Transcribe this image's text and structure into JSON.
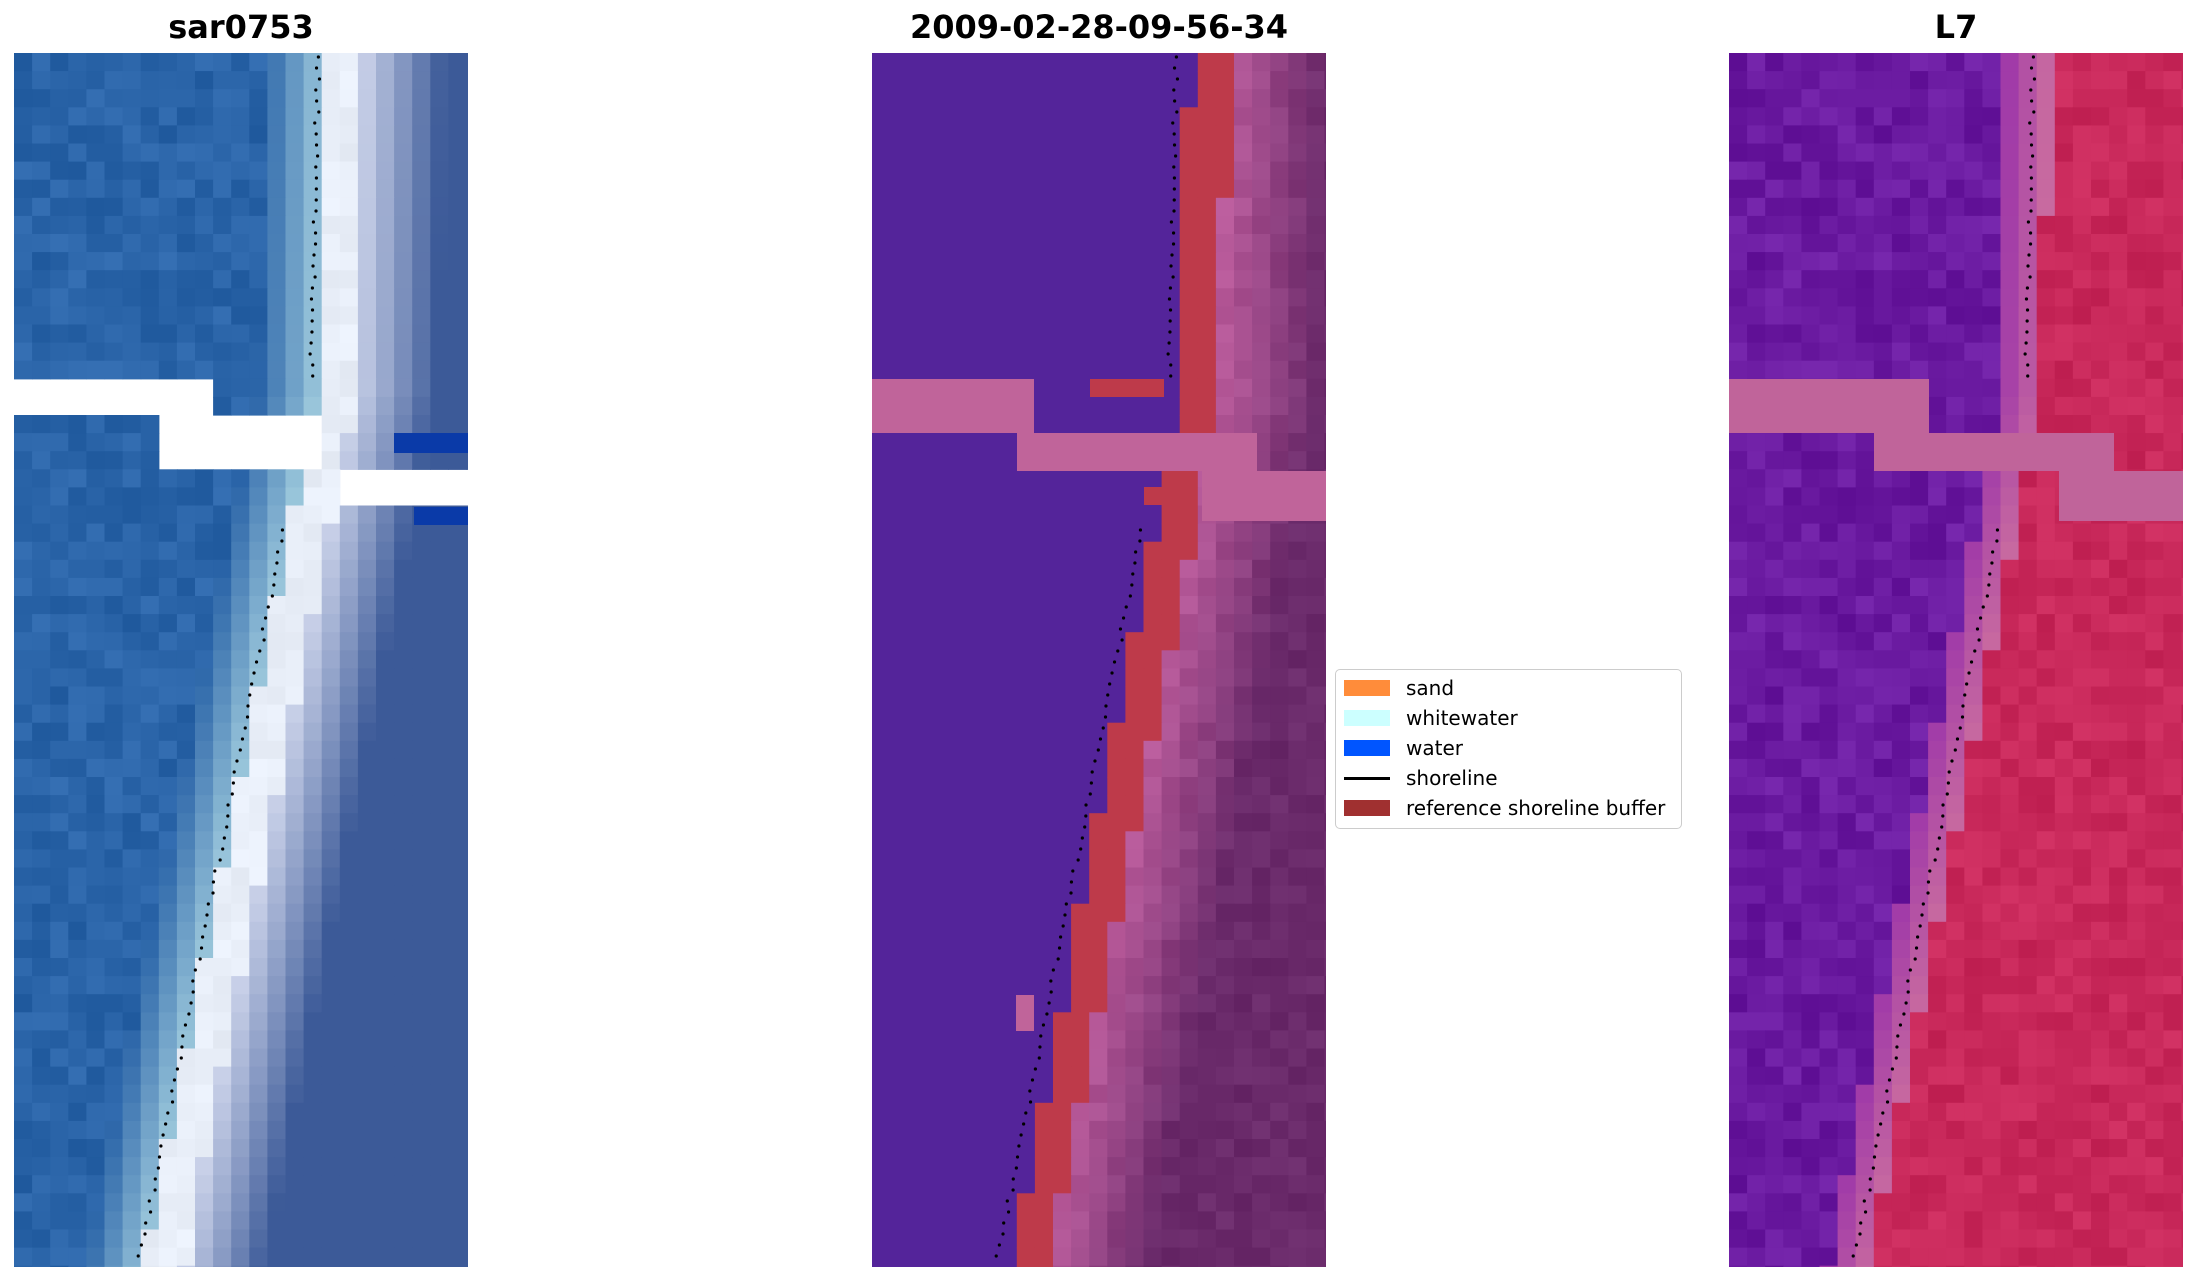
{
  "panels": {
    "left_title": "sar0753",
    "middle_title": "2009-02-28-09-56-34",
    "right_title": "L7"
  },
  "legend": {
    "items": [
      {
        "label": "sand",
        "color": "#ff8c3a",
        "kind": "patch"
      },
      {
        "label": "whitewater",
        "color": "#ccffff",
        "kind": "patch"
      },
      {
        "label": "water",
        "color": "#0055ff",
        "kind": "patch"
      },
      {
        "label": "shoreline",
        "color": "#000000",
        "kind": "line"
      },
      {
        "label": "reference shoreline buffer",
        "color": "#a03030",
        "kind": "patch"
      }
    ]
  },
  "colors": {
    "rgb_water": "#2a64a8",
    "rgb_surf": "#e8eef8",
    "class_water": "#54249a",
    "class_buffer": "#be3a4a",
    "class_land": "#8a3a7a",
    "cloud_mask": "#c0649a",
    "index_water": "#6a1aa0",
    "index_land": "#c8285a"
  }
}
